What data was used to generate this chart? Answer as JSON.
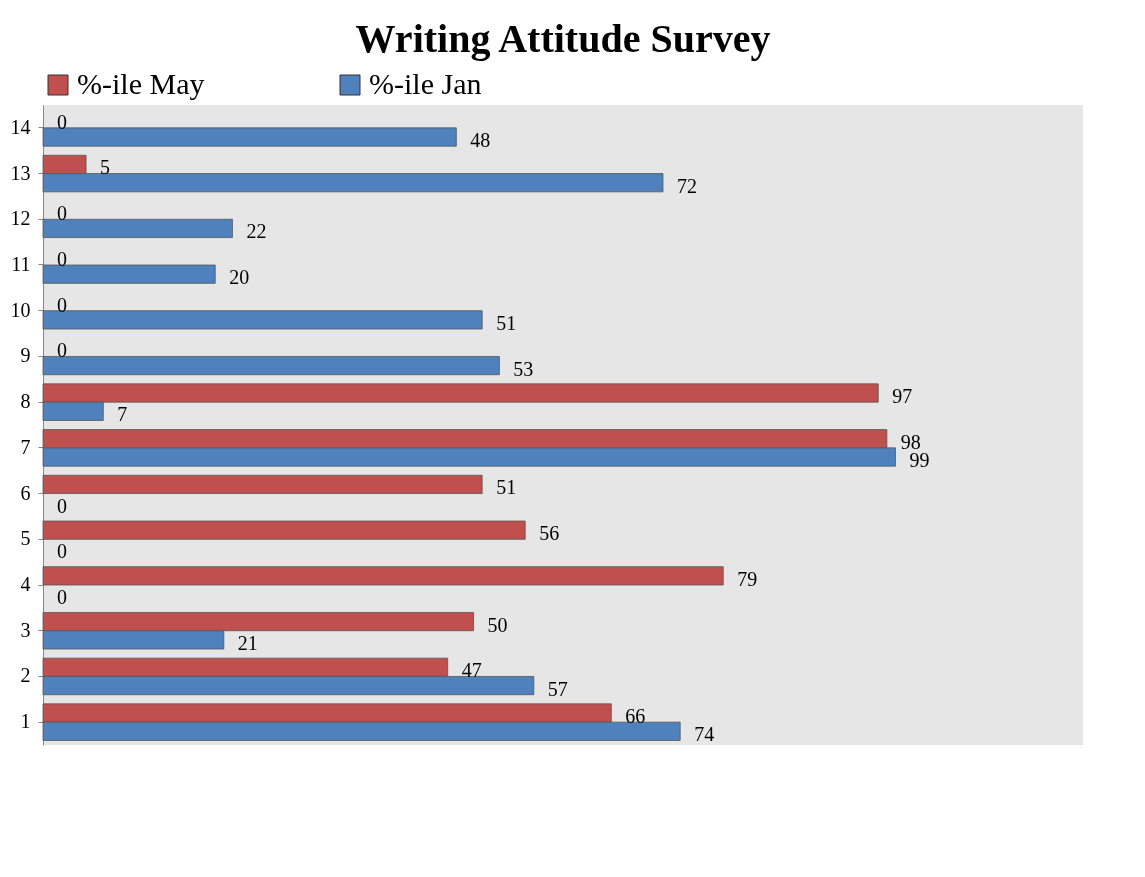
{
  "chart_data": {
    "type": "bar",
    "orientation": "horizontal",
    "title": "Writing Attitude Survey",
    "categories": [
      "14",
      "13",
      "12",
      "11",
      "10",
      "9",
      "8",
      "7",
      "6",
      "5",
      "4",
      "3",
      "2",
      "1"
    ],
    "series": [
      {
        "name": "%-ile May",
        "color": "#c0504d",
        "values": [
          0,
          5,
          0,
          0,
          0,
          0,
          97,
          98,
          51,
          56,
          79,
          50,
          47,
          66
        ]
      },
      {
        "name": "%-ile Jan",
        "color": "#4f81bd",
        "values": [
          48,
          72,
          22,
          20,
          51,
          53,
          7,
          99,
          0,
          0,
          0,
          21,
          57,
          74
        ]
      }
    ],
    "data_labels": true,
    "legend": "top",
    "grid": false,
    "tick_labels": "y"
  }
}
